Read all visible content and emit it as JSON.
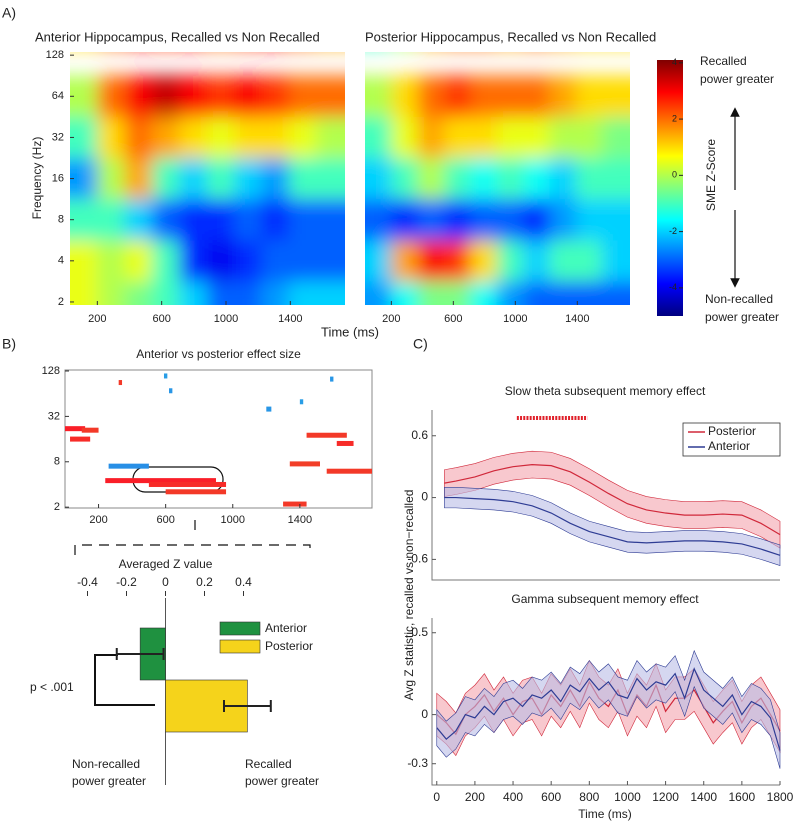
{
  "panels": [
    "A)",
    "B)",
    "C)"
  ],
  "chart_data": [
    {
      "type": "heatmap",
      "title": "Anterior Hippocampus, Recalled vs Non Recalled",
      "ylabel": "Frequency (Hz)",
      "xlabel": "Time (ms)",
      "x": [
        115,
        285,
        455,
        625,
        795,
        965,
        1135,
        1305,
        1475,
        1645
      ],
      "y": [
        128,
        64,
        32,
        16,
        8,
        4,
        2
      ],
      "z": [
        [
          1,
          2,
          3,
          2.5,
          3,
          2,
          2.5,
          3,
          2,
          1.5
        ],
        [
          0,
          2,
          3,
          3.5,
          3,
          2.5,
          3,
          2.5,
          2,
          2
        ],
        [
          -1,
          1,
          2,
          1.5,
          1,
          0.5,
          1,
          1,
          0.5,
          0
        ],
        [
          -2.5,
          0,
          1.5,
          -1,
          -2,
          -1,
          -2,
          -2.5,
          -1,
          -1
        ],
        [
          -1,
          -1,
          -2,
          -3,
          -3.5,
          -3.5,
          -3,
          -3.5,
          -3,
          -3
        ],
        [
          0.5,
          0,
          0.5,
          -1,
          -3.5,
          -4,
          -3.5,
          -3,
          -3,
          -3
        ],
        [
          0.5,
          0,
          -0.5,
          -1,
          -2,
          -3,
          -3,
          -2.5,
          -2,
          -2
        ]
      ],
      "xlim": [
        30,
        1740
      ],
      "ylim": [
        1.9,
        135
      ],
      "xticks": [
        200,
        600,
        1000,
        1400
      ],
      "yticks": [
        2,
        4,
        8,
        16,
        32,
        64,
        128
      ],
      "log_y": true
    },
    {
      "type": "heatmap",
      "title": "Posterior Hippocampus, Recalled vs Non Recalled",
      "x": [
        115,
        285,
        455,
        625,
        795,
        965,
        1135,
        1305,
        1475,
        1645
      ],
      "y": [
        128,
        64,
        32,
        16,
        8,
        4,
        2
      ],
      "z": [
        [
          -1,
          0,
          1.5,
          2,
          2,
          1.5,
          2,
          1.5,
          1,
          1
        ],
        [
          0,
          1,
          2,
          2.5,
          2,
          2,
          2,
          1.5,
          1,
          1
        ],
        [
          -1,
          0.5,
          1.5,
          1,
          1,
          0.5,
          0.5,
          0,
          0,
          -0.5
        ],
        [
          -2,
          -1,
          0,
          -1,
          -1.5,
          -1,
          -1.5,
          -2,
          -1,
          -1
        ],
        [
          -3,
          -3.5,
          -3,
          -3.5,
          -3,
          -3,
          -3.5,
          -2.5,
          -2,
          -2
        ],
        [
          -2,
          1.5,
          3,
          2.5,
          1,
          -1,
          -2,
          -1,
          -1,
          -2
        ],
        [
          -2.5,
          -1.5,
          -0.5,
          -0.5,
          -1.5,
          -2.5,
          -3,
          -3,
          -3,
          -3
        ]
      ],
      "xlim": [
        30,
        1740
      ],
      "ylim": [
        1.9,
        135
      ],
      "xticks": [
        200,
        600,
        1000,
        1400
      ],
      "log_y": true
    },
    {
      "type": "colorbar",
      "label": "SME Z-Score",
      "lim": [
        -5,
        4.1
      ],
      "ticks": [
        4,
        2,
        0,
        -2,
        -4
      ],
      "top_note": [
        "Recalled",
        "power greater"
      ],
      "bottom_note": [
        "Non-recalled",
        "power greater"
      ]
    },
    {
      "type": "effect_map",
      "title": "Anterior vs posterior effect size",
      "blobs": [
        [
          0,
          120,
          22,
          3
        ],
        [
          100,
          200,
          21,
          2
        ],
        [
          30,
          150,
          16,
          2.5
        ],
        [
          320,
          340,
          90,
          2
        ],
        [
          590,
          610,
          110,
          -1
        ],
        [
          620,
          640,
          70,
          -1.5
        ],
        [
          260,
          500,
          7,
          -2
        ],
        [
          240,
          900,
          4.5,
          3
        ],
        [
          500,
          960,
          4,
          2.5
        ],
        [
          600,
          960,
          3.2,
          2
        ],
        [
          1200,
          1230,
          40,
          -1.5
        ],
        [
          1400,
          1420,
          50,
          -1
        ],
        [
          1580,
          1600,
          100,
          -1.5
        ],
        [
          1440,
          1680,
          18,
          2
        ],
        [
          1620,
          1720,
          14,
          2.5
        ],
        [
          1560,
          1830,
          6,
          2
        ],
        [
          1300,
          1440,
          2.2,
          2
        ],
        [
          1340,
          1520,
          7.5,
          1.8
        ]
      ],
      "xlim": [
        0,
        1830
      ],
      "ylim": [
        1.95,
        132
      ],
      "xticks": [
        200,
        600,
        1000,
        1400
      ],
      "yticks": [
        2,
        8,
        32,
        128
      ],
      "log_y": true
    },
    {
      "type": "barh",
      "xlabel": "Averaged Z value",
      "categories": [
        "Anterior",
        "Posterior"
      ],
      "values": [
        -0.13,
        0.42
      ],
      "errors": [
        0.12,
        0.12
      ],
      "colors": [
        "#1f9140",
        "#f5d31b"
      ],
      "xlim": [
        -0.5,
        0.5
      ],
      "xticks": [
        -0.4,
        -0.2,
        0,
        0.2,
        0.4
      ],
      "annotation": "p < .001",
      "left_note": [
        "Non-recalled",
        "power greater"
      ],
      "right_note": [
        "Recalled",
        "power greater"
      ]
    },
    {
      "type": "band_line",
      "title": "Slow theta subsequent memory effect",
      "x": [
        40,
        100,
        200,
        300,
        400,
        500,
        600,
        700,
        800,
        900,
        1000,
        1100,
        1200,
        1300,
        1400,
        1500,
        1600,
        1700,
        1800
      ],
      "series": [
        {
          "name": "Posterior",
          "color": "#d0283a",
          "fill": "#f4a3ad",
          "error": 0.13,
          "values": [
            0.14,
            0.16,
            0.2,
            0.26,
            0.3,
            0.32,
            0.31,
            0.25,
            0.15,
            0.04,
            -0.06,
            -0.12,
            -0.15,
            -0.17,
            -0.17,
            -0.16,
            -0.17,
            -0.25,
            -0.36
          ]
        },
        {
          "name": "Anterior",
          "color": "#2e3c94",
          "fill": "#b9bde6",
          "error": 0.1,
          "values": [
            0,
            0,
            -0.01,
            -0.02,
            -0.04,
            -0.08,
            -0.15,
            -0.25,
            -0.33,
            -0.38,
            -0.43,
            -0.44,
            -0.43,
            -0.42,
            -0.42,
            -0.43,
            -0.45,
            -0.5,
            -0.56
          ]
        }
      ],
      "significance": [
        420,
        790
      ],
      "xlim": [
        -25,
        1800
      ],
      "ylim": [
        -0.8,
        0.85
      ],
      "yticks": [
        -0.6,
        0,
        0.6
      ]
    },
    {
      "type": "band_line",
      "title": "Gamma subsequent memory effect",
      "xlabel": "Time (ms)",
      "ylabel": "Avg Z statistic, recalled  vs non−recalled",
      "x": [
        0,
        50,
        100,
        150,
        200,
        250,
        300,
        350,
        400,
        450,
        500,
        550,
        600,
        650,
        700,
        750,
        800,
        850,
        900,
        950,
        1000,
        1050,
        1100,
        1150,
        1200,
        1250,
        1300,
        1350,
        1400,
        1450,
        1500,
        1550,
        1600,
        1650,
        1700,
        1750,
        1800
      ],
      "series": [
        {
          "name": "Posterior",
          "color": "#d0283a",
          "fill": "#f4a3ad",
          "error": 0.13,
          "values": [
            0.0,
            -0.05,
            -0.12,
            0.0,
            0.05,
            0.12,
            0.02,
            0.1,
            0.0,
            0.08,
            0.1,
            0.0,
            0.12,
            0.05,
            0.15,
            0.05,
            0.2,
            0.1,
            0.05,
            0.15,
            0.0,
            0.12,
            0.05,
            0.18,
            0.02,
            0.1,
            0.1,
            0.15,
            0.05,
            -0.05,
            0.02,
            0.08,
            -0.05,
            0.05,
            0.1,
            0.0,
            -0.1
          ]
        },
        {
          "name": "Anterior",
          "color": "#2e3c94",
          "fill": "#b9bde6",
          "error": 0.11,
          "values": [
            -0.08,
            -0.15,
            -0.1,
            0.0,
            -0.02,
            0.05,
            0.0,
            0.08,
            0.1,
            0.05,
            0.12,
            0.1,
            0.15,
            0.08,
            0.18,
            0.14,
            0.22,
            0.15,
            0.2,
            0.12,
            0.1,
            0.22,
            0.15,
            0.2,
            0.18,
            0.25,
            0.1,
            0.28,
            0.15,
            0.1,
            0.05,
            0.12,
            0.0,
            0.08,
            0.05,
            -0.02,
            -0.22
          ]
        }
      ],
      "xlim": [
        -25,
        1800
      ],
      "ylim": [
        -0.43,
        0.59
      ],
      "xticks": [
        0,
        200,
        400,
        600,
        800,
        1000,
        1200,
        1400,
        1600,
        1800
      ],
      "yticks": [
        0.5,
        0,
        -0.3
      ]
    }
  ]
}
